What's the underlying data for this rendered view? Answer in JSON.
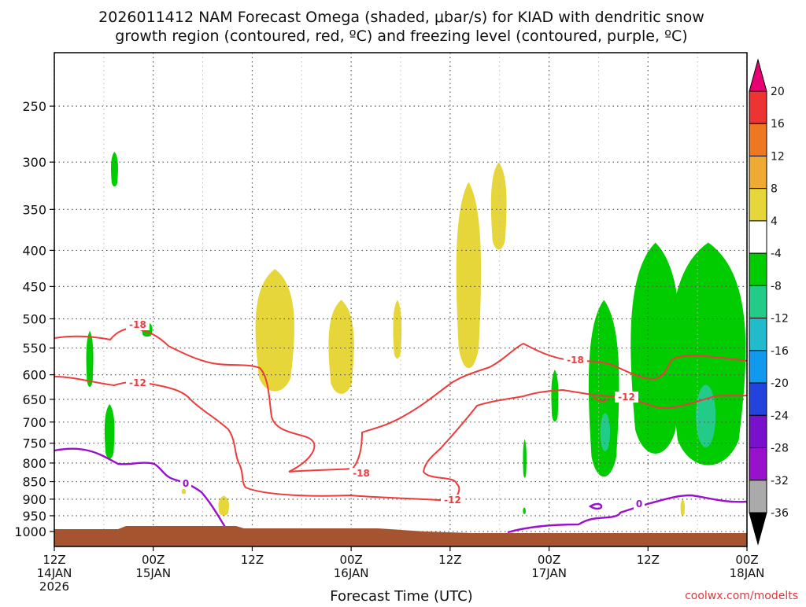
{
  "chart_data": {
    "type": "time-height",
    "title": {
      "line1": "2026011412 NAM Forecast Omega (shaded, μbar/s) for KIAD with dendritic snow",
      "line2": "growth region (contoured, red, ºC) and freezing level (contoured, purple, ºC)"
    },
    "xlabel": "Forecast Time (UTC)",
    "x_ticks": [
      {
        "hour": 0,
        "label1": "12Z",
        "label2": "14JAN",
        "label3": "2026"
      },
      {
        "hour": 12,
        "label1": "00Z",
        "label2": "15JAN",
        "label3": ""
      },
      {
        "hour": 24,
        "label1": "12Z",
        "label2": "",
        "label3": ""
      },
      {
        "hour": 36,
        "label1": "00Z",
        "label2": "16JAN",
        "label3": ""
      },
      {
        "hour": 48,
        "label1": "12Z",
        "label2": "",
        "label3": ""
      },
      {
        "hour": 60,
        "label1": "00Z",
        "label2": "17JAN",
        "label3": ""
      },
      {
        "hour": 72,
        "label1": "12Z",
        "label2": "",
        "label3": ""
      },
      {
        "hour": 84,
        "label1": "00Z",
        "label2": "18JAN",
        "label3": ""
      }
    ],
    "y_ticks": [
      "250",
      "300",
      "350",
      "400",
      "450",
      "500",
      "550",
      "600",
      "650",
      "700",
      "750",
      "800",
      "850",
      "900",
      "950",
      "1000"
    ],
    "y_range_hpa": [
      1050,
      200
    ],
    "colorbar": {
      "labels": [
        "20",
        "16",
        "12",
        "8",
        "4",
        "-4",
        "-8",
        "-12",
        "-16",
        "-20",
        "-24",
        "-28",
        "-32",
        "-36"
      ],
      "colors": [
        "#e60073",
        "#ee3333",
        "#ee7722",
        "#eeaa33",
        "#e6d63a",
        "#ffffff",
        "#00cc00",
        "#22cc88",
        "#22bbcc",
        "#1199ee",
        "#2244dd",
        "#7711cc",
        "#9911cc",
        "#aaaaaa",
        "#000000"
      ]
    },
    "contours": {
      "dgz_labels": [
        "-18",
        "-12",
        "-18",
        "-18",
        "-12",
        "-12"
      ],
      "freezing_labels": [
        "0",
        "0"
      ]
    },
    "omega_areas": [
      {
        "sign": "down",
        "t": [
          6.8,
          7.8
        ],
        "p": [
          290,
          325
        ]
      },
      {
        "sign": "down",
        "t": [
          10.5,
          12
        ],
        "p": [
          505,
          530
        ]
      },
      {
        "sign": "down",
        "t": [
          3.8,
          4.8
        ],
        "p": [
          520,
          625
        ]
      },
      {
        "sign": "down",
        "t": [
          6,
          7.4
        ],
        "p": [
          660,
          790
        ]
      },
      {
        "sign": "up",
        "t": [
          24,
          29.5
        ],
        "p": [
          425,
          635
        ]
      },
      {
        "sign": "up",
        "t": [
          33,
          36.6
        ],
        "p": [
          470,
          640
        ]
      },
      {
        "sign": "up",
        "t": [
          41,
          42.2
        ],
        "p": [
          470,
          570
        ]
      },
      {
        "sign": "up",
        "t": [
          48.5,
          52
        ],
        "p": [
          320,
          590
        ]
      },
      {
        "sign": "up",
        "t": [
          52.8,
          55
        ],
        "p": [
          300,
          400
        ]
      },
      {
        "sign": "up",
        "t": [
          19.8,
          21.3
        ],
        "p": [
          890,
          950
        ]
      },
      {
        "sign": "up",
        "t": [
          15.4,
          16
        ],
        "p": [
          870,
          885
        ]
      },
      {
        "sign": "up",
        "t": [
          75.9,
          76.5
        ],
        "p": [
          900,
          950
        ]
      },
      {
        "sign": "down",
        "t": [
          60.2,
          61.2
        ],
        "p": [
          590,
          700
        ]
      },
      {
        "sign": "down",
        "t": [
          56.8,
          57.3
        ],
        "p": [
          740,
          840
        ]
      },
      {
        "sign": "down",
        "t": [
          56.8,
          57.2
        ],
        "p": [
          925,
          945
        ]
      },
      {
        "sign": "down",
        "t": [
          64.5,
          68.8
        ],
        "p": [
          470,
          840
        ]
      },
      {
        "sign": "down",
        "t": [
          69.4,
          76.4
        ],
        "p": [
          390,
          780
        ]
      },
      {
        "sign": "down",
        "t": [
          74,
          84.6
        ],
        "p": [
          390,
          810
        ]
      }
    ],
    "surface": {
      "label": "terrain",
      "p_top": 980
    }
  },
  "credit": "coolwx.com/modelts"
}
